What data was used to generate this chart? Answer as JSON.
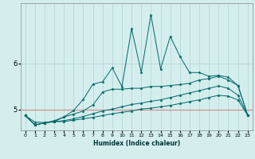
{
  "xlabel": "Humidex (Indice chaleur)",
  "xlim": [
    -0.5,
    23.5
  ],
  "ylim": [
    4.55,
    7.3
  ],
  "yticks": [
    5,
    6
  ],
  "xticks": [
    0,
    1,
    2,
    3,
    4,
    5,
    6,
    7,
    8,
    9,
    10,
    11,
    12,
    13,
    14,
    15,
    16,
    17,
    18,
    19,
    20,
    21,
    22,
    23
  ],
  "bg_color": "#d4eeee",
  "grid_color": "#b8d8d8",
  "line_color": "#006666",
  "red_line_y": 5.0,
  "red_line_color": "#d09090",
  "series1": [
    4.87,
    4.73,
    4.72,
    4.74,
    4.84,
    4.98,
    5.22,
    5.55,
    5.6,
    5.9,
    5.5,
    6.75,
    5.8,
    7.05,
    5.88,
    6.58,
    6.15,
    5.8,
    5.8,
    5.72,
    5.74,
    5.7,
    5.52,
    4.88
  ],
  "series2": [
    4.87,
    4.67,
    4.71,
    4.76,
    4.84,
    4.9,
    4.97,
    5.1,
    5.38,
    5.44,
    5.44,
    5.46,
    5.46,
    5.5,
    5.5,
    5.52,
    5.54,
    5.57,
    5.64,
    5.67,
    5.72,
    5.64,
    5.52,
    4.88
  ],
  "series3": [
    4.87,
    4.67,
    4.71,
    4.74,
    4.76,
    4.8,
    4.85,
    4.91,
    4.97,
    5.01,
    5.06,
    5.11,
    5.14,
    5.18,
    5.21,
    5.26,
    5.31,
    5.36,
    5.41,
    5.46,
    5.51,
    5.46,
    5.31,
    4.88
  ],
  "series4": [
    4.87,
    4.67,
    4.71,
    4.74,
    4.74,
    4.77,
    4.8,
    4.83,
    4.87,
    4.91,
    4.94,
    4.97,
    5.01,
    5.03,
    5.06,
    5.09,
    5.13,
    5.17,
    5.21,
    5.26,
    5.31,
    5.29,
    5.21,
    4.88
  ]
}
